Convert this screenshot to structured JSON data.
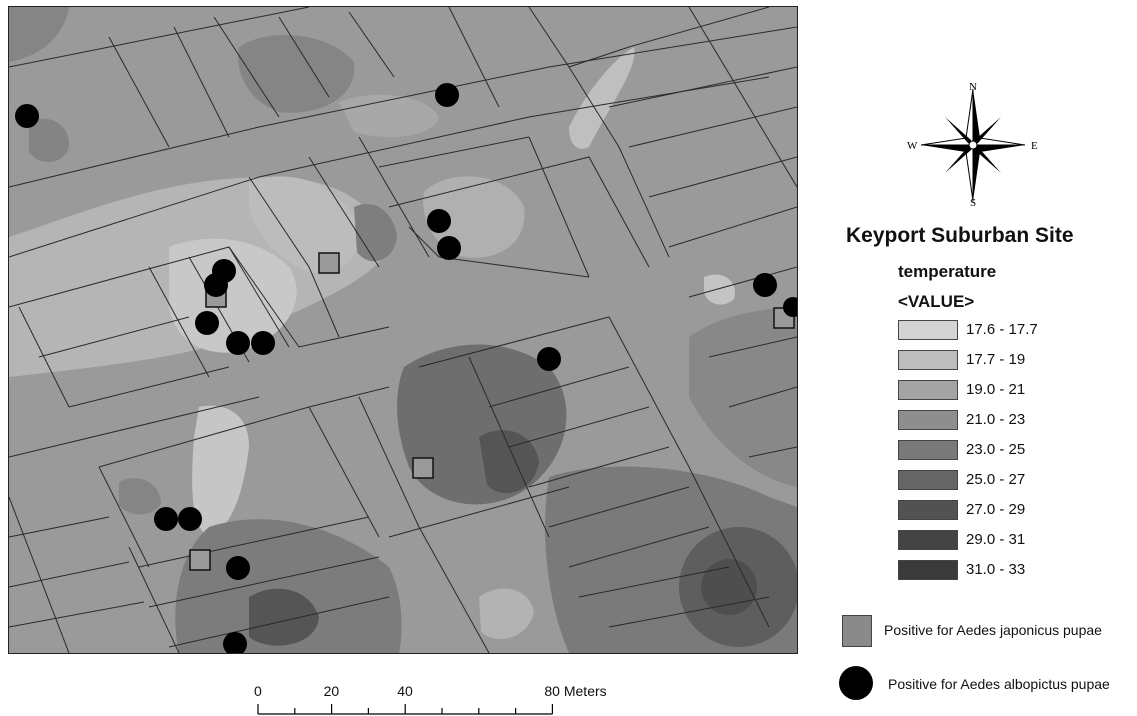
{
  "legend": {
    "site_title": "Keyport Suburban Site",
    "field_name": "temperature",
    "value_header": "<VALUE>",
    "classes": [
      {
        "label": "17.6 - 17.7",
        "color": "#d4d4d4"
      },
      {
        "label": "17.7 - 19",
        "color": "#bdbdbd"
      },
      {
        "label": "19.0 - 21",
        "color": "#a4a4a4"
      },
      {
        "label": "21.0 - 23",
        "color": "#8e8e8e"
      },
      {
        "label": "23.0 - 25",
        "color": "#797979"
      },
      {
        "label": "25.0 - 27",
        "color": "#666666"
      },
      {
        "label": "27.0 - 29",
        "color": "#525252"
      },
      {
        "label": "29.0 - 31",
        "color": "#444444"
      },
      {
        "label": "31.0 - 33",
        "color": "#3a3a3a"
      }
    ],
    "japonicus_label": "Positive for Aedes japonicus pupae",
    "albopictus_label": "Positive for Aedes albopictus pupae"
  },
  "compass": {
    "north": "N",
    "south": "S",
    "east": "E",
    "west": "W"
  },
  "scale_bar": {
    "labels": [
      "0",
      "20",
      "40",
      "80 Meters"
    ],
    "distances": [
      0,
      20,
      40,
      80
    ]
  }
}
